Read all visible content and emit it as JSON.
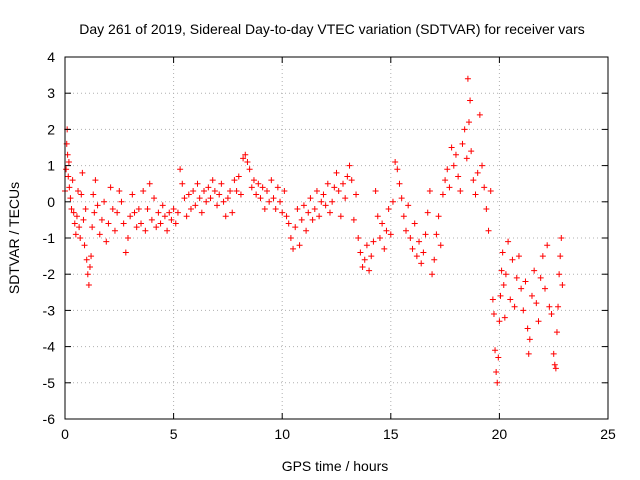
{
  "chart_data": {
    "type": "scatter",
    "title": "Day 261 of 2019, Sidereal Day-to-day VTEC variation (SDTVAR) for receiver vars",
    "xlabel": "GPS time / hours",
    "ylabel": "SDTVAR / TECUs",
    "xlim": [
      0,
      25
    ],
    "ylim": [
      -6,
      4
    ],
    "xticks": [
      0,
      5,
      10,
      15,
      20,
      25
    ],
    "yticks": [
      -6,
      -5,
      -4,
      -3,
      -2,
      -1,
      0,
      1,
      2,
      3,
      4
    ],
    "grid": true,
    "marker": "+",
    "color": "#ff0000",
    "series": [
      {
        "name": "SDTVAR",
        "values": [
          [
            0.0,
            0.3
          ],
          [
            0.05,
            0.9
          ],
          [
            0.08,
            1.6
          ],
          [
            0.1,
            2.0
          ],
          [
            0.12,
            1.3
          ],
          [
            0.15,
            0.7
          ],
          [
            0.18,
            1.1
          ],
          [
            0.2,
            0.4
          ],
          [
            0.25,
            0.1
          ],
          [
            0.3,
            -0.2
          ],
          [
            0.35,
            0.6
          ],
          [
            0.4,
            -0.3
          ],
          [
            0.45,
            -0.6
          ],
          [
            0.5,
            -0.9
          ],
          [
            0.55,
            -0.4
          ],
          [
            0.6,
            0.3
          ],
          [
            0.65,
            -0.7
          ],
          [
            0.7,
            -1.0
          ],
          [
            0.75,
            0.2
          ],
          [
            0.8,
            0.8
          ],
          [
            0.85,
            -0.5
          ],
          [
            0.9,
            -1.2
          ],
          [
            0.95,
            -0.2
          ],
          [
            1.0,
            -1.6
          ],
          [
            1.05,
            -2.0
          ],
          [
            1.1,
            -2.3
          ],
          [
            1.15,
            -1.8
          ],
          [
            1.2,
            -1.5
          ],
          [
            1.25,
            -0.7
          ],
          [
            1.3,
            0.2
          ],
          [
            1.35,
            -0.3
          ],
          [
            1.4,
            0.6
          ],
          [
            1.5,
            -0.1
          ],
          [
            1.6,
            -0.9
          ],
          [
            1.7,
            -0.5
          ],
          [
            1.8,
            0.0
          ],
          [
            1.9,
            -1.1
          ],
          [
            2.0,
            -0.6
          ],
          [
            2.1,
            0.4
          ],
          [
            2.2,
            -0.2
          ],
          [
            2.3,
            -0.8
          ],
          [
            2.4,
            -0.3
          ],
          [
            2.5,
            0.3
          ],
          [
            2.6,
            0.0
          ],
          [
            2.7,
            -0.6
          ],
          [
            2.8,
            -1.4
          ],
          [
            2.9,
            -1.0
          ],
          [
            3.0,
            -0.4
          ],
          [
            3.1,
            0.2
          ],
          [
            3.2,
            -0.3
          ],
          [
            3.3,
            -0.7
          ],
          [
            3.4,
            -0.2
          ],
          [
            3.5,
            -0.6
          ],
          [
            3.6,
            0.3
          ],
          [
            3.7,
            -0.8
          ],
          [
            3.8,
            -0.2
          ],
          [
            3.9,
            0.5
          ],
          [
            4.0,
            -0.5
          ],
          [
            4.1,
            0.1
          ],
          [
            4.2,
            -0.7
          ],
          [
            4.3,
            -0.3
          ],
          [
            4.4,
            -0.6
          ],
          [
            4.5,
            -0.1
          ],
          [
            4.6,
            -0.4
          ],
          [
            4.7,
            -0.8
          ],
          [
            4.8,
            -0.3
          ],
          [
            4.9,
            -0.5
          ],
          [
            5.0,
            -0.2
          ],
          [
            5.1,
            -0.6
          ],
          [
            5.2,
            -0.3
          ],
          [
            5.3,
            0.9
          ],
          [
            5.4,
            0.5
          ],
          [
            5.5,
            0.1
          ],
          [
            5.6,
            -0.4
          ],
          [
            5.7,
            0.2
          ],
          [
            5.8,
            -0.2
          ],
          [
            5.9,
            0.3
          ],
          [
            6.0,
            -0.1
          ],
          [
            6.1,
            0.5
          ],
          [
            6.2,
            0.1
          ],
          [
            6.3,
            -0.3
          ],
          [
            6.4,
            0.3
          ],
          [
            6.5,
            0.0
          ],
          [
            6.6,
            0.4
          ],
          [
            6.7,
            0.1
          ],
          [
            6.8,
            0.6
          ],
          [
            6.9,
            0.3
          ],
          [
            7.0,
            -0.1
          ],
          [
            7.1,
            0.2
          ],
          [
            7.2,
            0.5
          ],
          [
            7.3,
            0.0
          ],
          [
            7.4,
            -0.4
          ],
          [
            7.5,
            0.1
          ],
          [
            7.6,
            0.3
          ],
          [
            7.7,
            -0.3
          ],
          [
            7.8,
            0.6
          ],
          [
            7.9,
            0.3
          ],
          [
            8.0,
            0.7
          ],
          [
            8.1,
            0.2
          ],
          [
            8.2,
            1.2
          ],
          [
            8.3,
            1.3
          ],
          [
            8.4,
            1.1
          ],
          [
            8.5,
            0.9
          ],
          [
            8.6,
            0.4
          ],
          [
            8.7,
            0.6
          ],
          [
            8.8,
            0.2
          ],
          [
            8.9,
            0.5
          ],
          [
            9.0,
            0.1
          ],
          [
            9.1,
            0.4
          ],
          [
            9.2,
            -0.2
          ],
          [
            9.3,
            0.3
          ],
          [
            9.4,
            0.0
          ],
          [
            9.5,
            0.6
          ],
          [
            9.6,
            0.1
          ],
          [
            9.7,
            -0.2
          ],
          [
            9.8,
            0.4
          ],
          [
            9.9,
            0.0
          ],
          [
            10.0,
            -0.3
          ],
          [
            10.1,
            0.3
          ],
          [
            10.2,
            -0.4
          ],
          [
            10.3,
            -0.6
          ],
          [
            10.4,
            -1.0
          ],
          [
            10.5,
            -1.3
          ],
          [
            10.6,
            -0.7
          ],
          [
            10.7,
            -0.2
          ],
          [
            10.8,
            -1.2
          ],
          [
            10.9,
            -0.5
          ],
          [
            11.0,
            -0.1
          ],
          [
            11.1,
            -0.8
          ],
          [
            11.2,
            -0.3
          ],
          [
            11.3,
            0.1
          ],
          [
            11.4,
            -0.5
          ],
          [
            11.5,
            -0.2
          ],
          [
            11.6,
            0.3
          ],
          [
            11.7,
            -0.4
          ],
          [
            11.8,
            0.0
          ],
          [
            11.9,
            0.2
          ],
          [
            12.0,
            -0.1
          ],
          [
            12.1,
            0.5
          ],
          [
            12.2,
            -0.3
          ],
          [
            12.3,
            0.0
          ],
          [
            12.4,
            0.4
          ],
          [
            12.5,
            0.8
          ],
          [
            12.6,
            0.3
          ],
          [
            12.7,
            -0.4
          ],
          [
            12.8,
            0.5
          ],
          [
            12.9,
            0.1
          ],
          [
            13.0,
            0.7
          ],
          [
            13.1,
            1.0
          ],
          [
            13.2,
            0.6
          ],
          [
            13.3,
            -0.5
          ],
          [
            13.4,
            0.2
          ],
          [
            13.5,
            -1.0
          ],
          [
            13.6,
            -1.4
          ],
          [
            13.7,
            -1.8
          ],
          [
            13.8,
            -1.6
          ],
          [
            13.9,
            -1.2
          ],
          [
            14.0,
            -1.9
          ],
          [
            14.1,
            -1.5
          ],
          [
            14.2,
            -1.1
          ],
          [
            14.3,
            0.3
          ],
          [
            14.4,
            -0.4
          ],
          [
            14.5,
            -1.0
          ],
          [
            14.6,
            -0.6
          ],
          [
            14.7,
            -1.3
          ],
          [
            14.8,
            -0.8
          ],
          [
            14.9,
            -0.2
          ],
          [
            15.0,
            -0.9
          ],
          [
            15.1,
            0.0
          ],
          [
            15.2,
            1.1
          ],
          [
            15.3,
            0.9
          ],
          [
            15.4,
            0.5
          ],
          [
            15.5,
            0.1
          ],
          [
            15.6,
            -0.4
          ],
          [
            15.7,
            -0.8
          ],
          [
            15.8,
            -0.1
          ],
          [
            15.9,
            -1.0
          ],
          [
            16.0,
            -1.3
          ],
          [
            16.1,
            -0.6
          ],
          [
            16.2,
            -1.5
          ],
          [
            16.3,
            -1.1
          ],
          [
            16.4,
            -1.7
          ],
          [
            16.5,
            -1.4
          ],
          [
            16.6,
            -0.9
          ],
          [
            16.7,
            -0.3
          ],
          [
            16.8,
            0.3
          ],
          [
            16.9,
            -2.0
          ],
          [
            17.0,
            -1.6
          ],
          [
            17.1,
            -0.9
          ],
          [
            17.2,
            -0.4
          ],
          [
            17.3,
            -1.2
          ],
          [
            17.4,
            0.2
          ],
          [
            17.5,
            0.6
          ],
          [
            17.6,
            0.9
          ],
          [
            17.7,
            0.4
          ],
          [
            17.8,
            1.5
          ],
          [
            17.9,
            1.0
          ],
          [
            18.0,
            1.3
          ],
          [
            18.1,
            0.7
          ],
          [
            18.2,
            0.3
          ],
          [
            18.3,
            1.6
          ],
          [
            18.4,
            2.0
          ],
          [
            18.5,
            1.2
          ],
          [
            18.55,
            3.4
          ],
          [
            18.6,
            2.2
          ],
          [
            18.65,
            2.8
          ],
          [
            18.7,
            1.4
          ],
          [
            18.8,
            0.6
          ],
          [
            18.9,
            0.2
          ],
          [
            19.0,
            0.8
          ],
          [
            19.1,
            2.4
          ],
          [
            19.2,
            1.0
          ],
          [
            19.3,
            0.4
          ],
          [
            19.4,
            -0.2
          ],
          [
            19.5,
            -0.8
          ],
          [
            19.6,
            0.3
          ],
          [
            19.7,
            -2.7
          ],
          [
            19.75,
            -3.1
          ],
          [
            19.8,
            -4.1
          ],
          [
            19.85,
            -4.7
          ],
          [
            19.9,
            -5.0
          ],
          [
            19.95,
            -4.3
          ],
          [
            20.0,
            -3.3
          ],
          [
            20.05,
            -2.6
          ],
          [
            20.1,
            -1.9
          ],
          [
            20.15,
            -1.4
          ],
          [
            20.2,
            -2.3
          ],
          [
            20.25,
            -3.2
          ],
          [
            20.3,
            -2.0
          ],
          [
            20.4,
            -1.1
          ],
          [
            20.5,
            -2.7
          ],
          [
            20.6,
            -1.6
          ],
          [
            20.7,
            -2.9
          ],
          [
            20.8,
            -2.1
          ],
          [
            20.9,
            -1.5
          ],
          [
            21.0,
            -2.4
          ],
          [
            21.1,
            -3.0
          ],
          [
            21.2,
            -2.2
          ],
          [
            21.3,
            -3.5
          ],
          [
            21.35,
            -4.2
          ],
          [
            21.4,
            -3.8
          ],
          [
            21.5,
            -2.6
          ],
          [
            21.6,
            -1.9
          ],
          [
            21.7,
            -2.8
          ],
          [
            21.8,
            -3.3
          ],
          [
            21.9,
            -2.1
          ],
          [
            22.0,
            -1.5
          ],
          [
            22.1,
            -2.4
          ],
          [
            22.2,
            -1.2
          ],
          [
            22.3,
            -2.9
          ],
          [
            22.4,
            -3.1
          ],
          [
            22.5,
            -4.2
          ],
          [
            22.55,
            -4.5
          ],
          [
            22.6,
            -4.6
          ],
          [
            22.65,
            -3.6
          ],
          [
            22.7,
            -2.9
          ],
          [
            22.75,
            -2.0
          ],
          [
            22.8,
            -1.5
          ],
          [
            22.85,
            -1.0
          ],
          [
            22.9,
            -2.3
          ]
        ]
      }
    ]
  }
}
